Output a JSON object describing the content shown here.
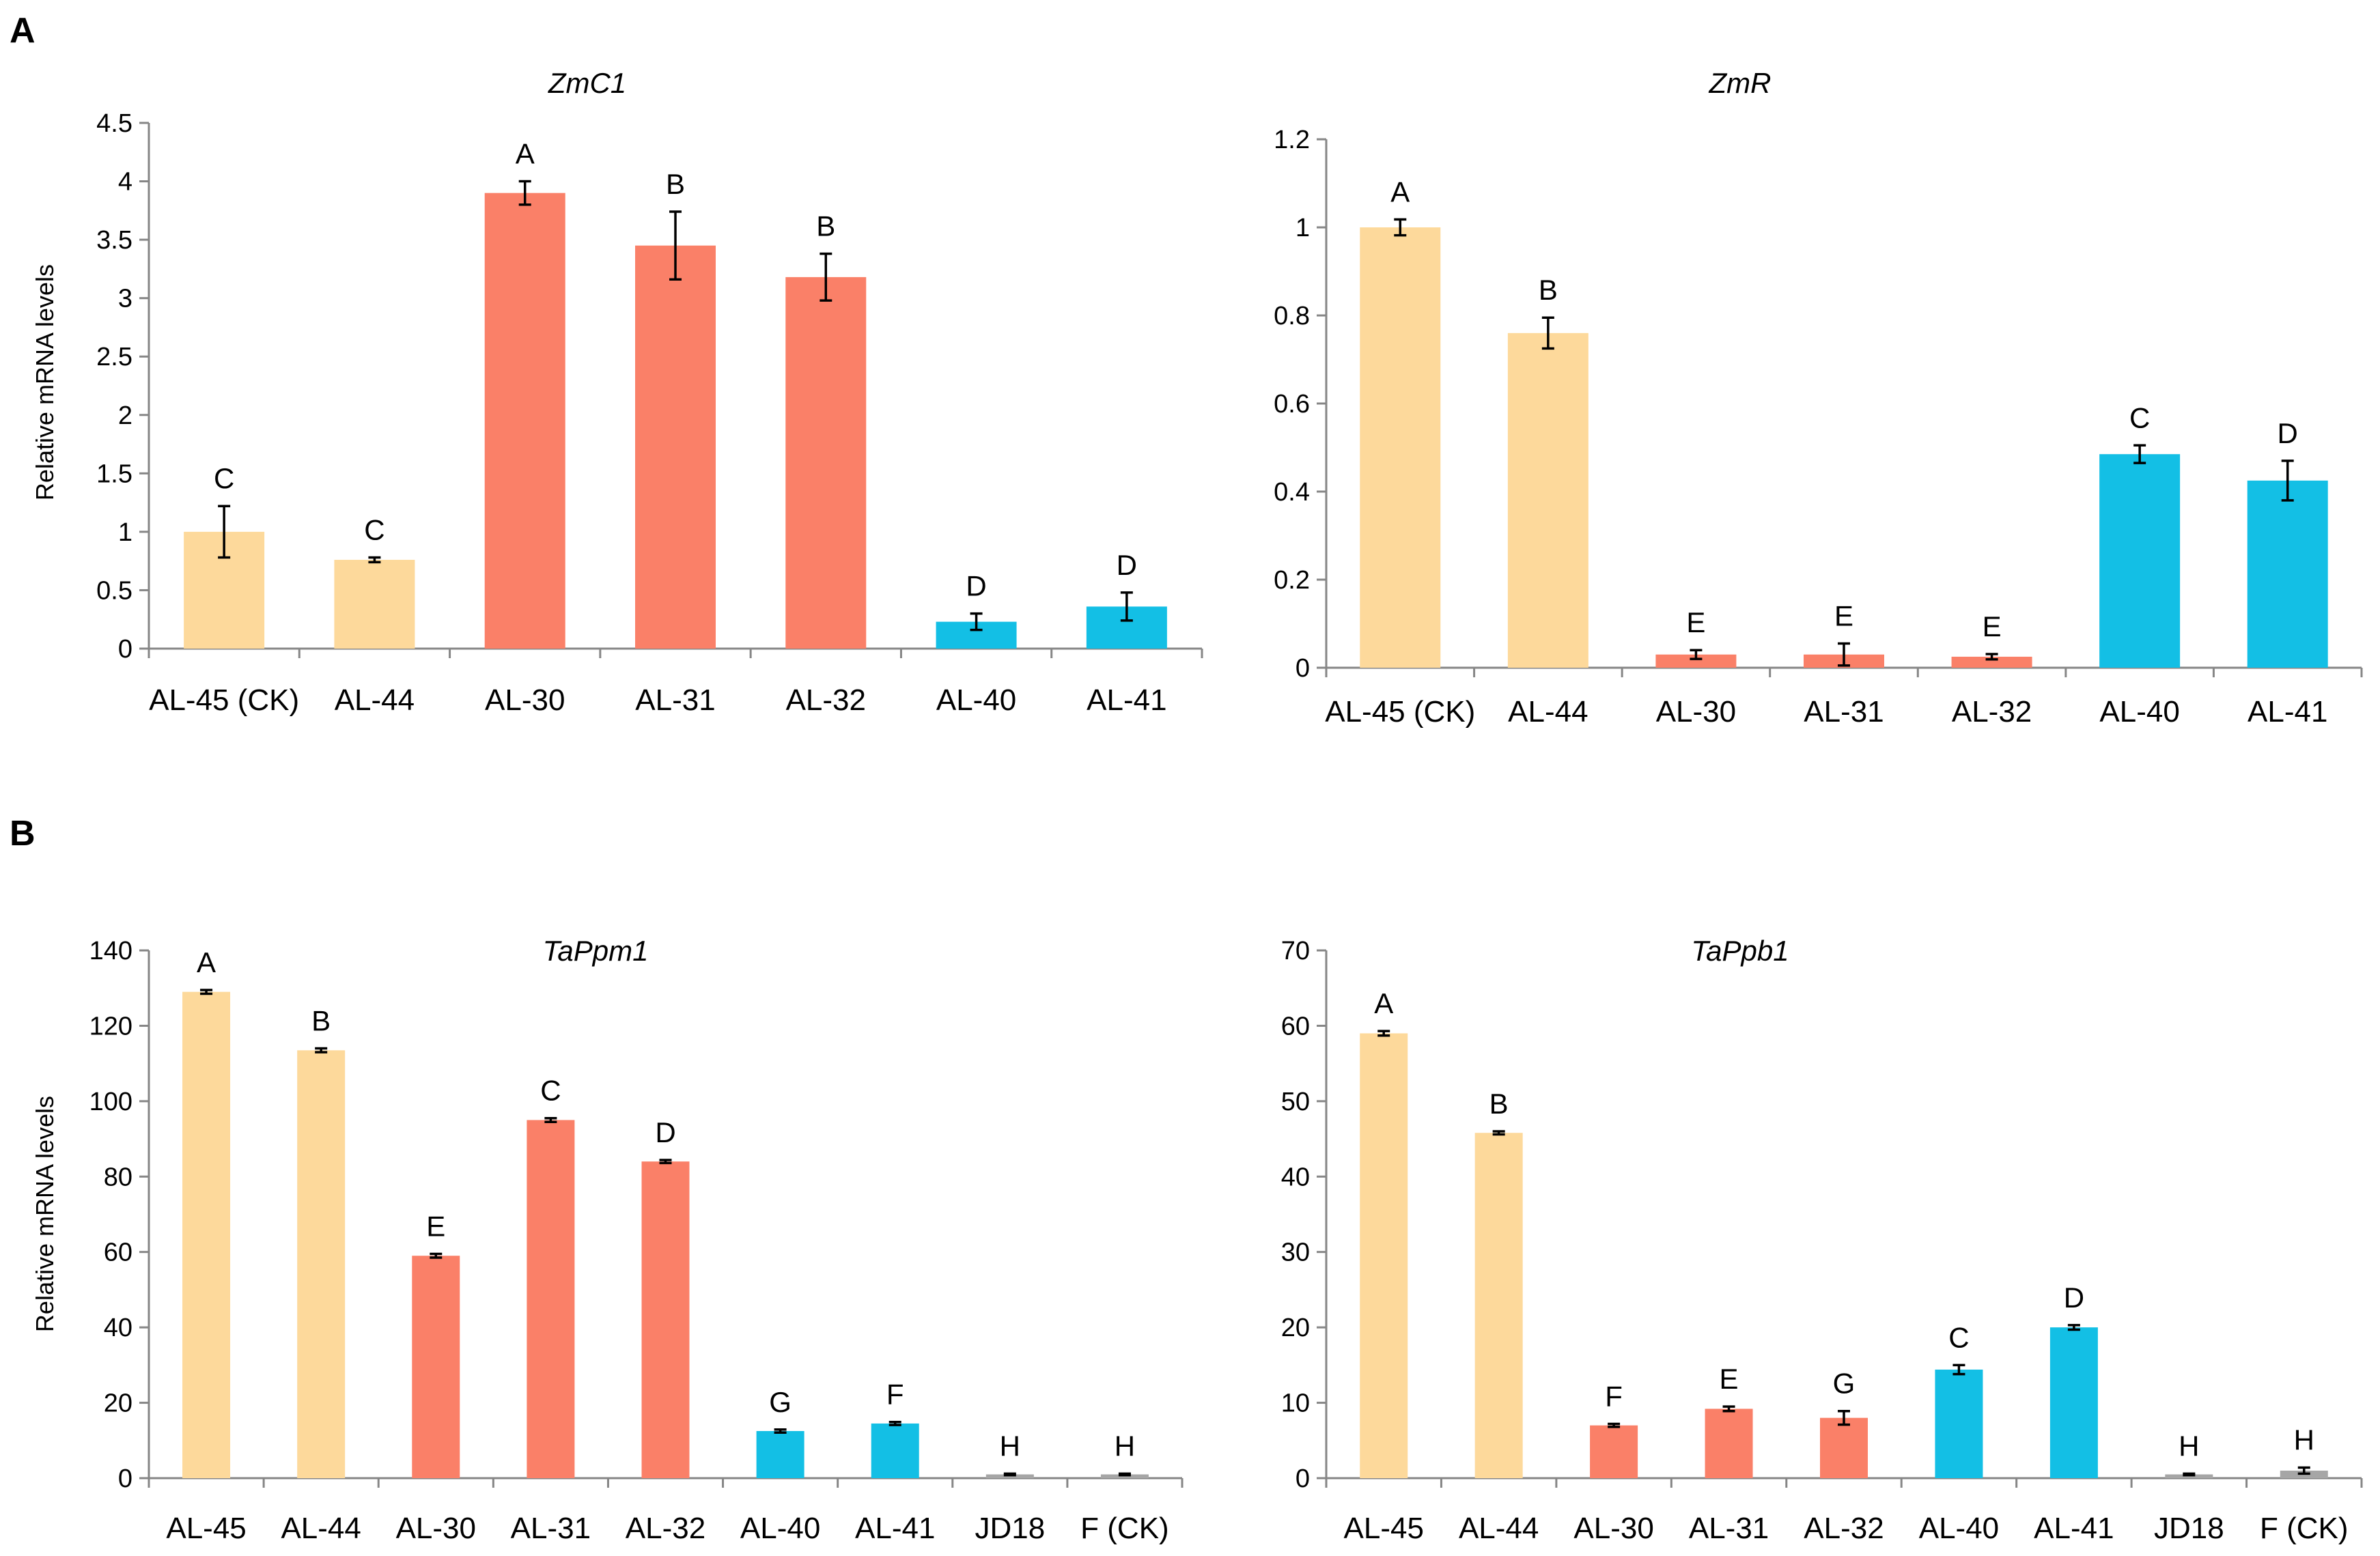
{
  "panels": {
    "A": "A",
    "B": "B"
  },
  "colors": {
    "yellow": "#fdd99b",
    "salmon": "#fa8068",
    "cyan": "#13bfe5",
    "gray": "#a6a6a6"
  },
  "chart_data": [
    {
      "type": "bar",
      "panel": "A",
      "title": "ZmC1",
      "ylabel": "Relative mRNA levels",
      "ylim": [
        0,
        4.5
      ],
      "yticks": [
        "0",
        "0.5",
        "1",
        "1.5",
        "2",
        "2.5",
        "3",
        "3.5",
        "4",
        "4.5"
      ],
      "categories": [
        "AL-45 (CK)",
        "AL-44",
        "AL-30",
        "AL-31",
        "AL-32",
        "AL-40",
        "AL-41"
      ],
      "values": [
        1.0,
        0.76,
        3.9,
        3.45,
        3.18,
        0.23,
        0.36
      ],
      "errors": [
        0.22,
        0.02,
        0.1,
        0.29,
        0.2,
        0.07,
        0.12
      ],
      "labels": [
        "C",
        "C",
        "A",
        "B",
        "B",
        "D",
        "D"
      ],
      "colors": [
        "yellow",
        "yellow",
        "salmon",
        "salmon",
        "salmon",
        "cyan",
        "cyan"
      ]
    },
    {
      "type": "bar",
      "panel": "A",
      "title": "ZmR",
      "ylabel": "",
      "ylim": [
        0,
        1.2
      ],
      "yticks": [
        "0",
        "0.2",
        "0.4",
        "0.6",
        "0.8",
        "1",
        "1.2"
      ],
      "categories": [
        "AL-45 (CK)",
        "AL-44",
        "AL-30",
        "AL-31",
        "AL-32",
        "AL-40",
        "AL-41"
      ],
      "values": [
        1.0,
        0.76,
        0.03,
        0.03,
        0.025,
        0.485,
        0.425
      ],
      "errors": [
        0.018,
        0.035,
        0.01,
        0.025,
        0.006,
        0.02,
        0.045
      ],
      "labels": [
        "A",
        "B",
        "E",
        "E",
        "E",
        "C",
        "D"
      ],
      "colors": [
        "yellow",
        "yellow",
        "salmon",
        "salmon",
        "salmon",
        "cyan",
        "cyan"
      ]
    },
    {
      "type": "bar",
      "panel": "B",
      "title": "TaPpm1",
      "ylabel": "Relative mRNA levels",
      "ylim": [
        0,
        140
      ],
      "yticks": [
        "0",
        "20",
        "40",
        "60",
        "80",
        "100",
        "120",
        "140"
      ],
      "categories": [
        "AL-45",
        "AL-44",
        "AL-30",
        "AL-31",
        "AL-32",
        "AL-40",
        "AL-41",
        "JD18",
        "F (CK)"
      ],
      "values": [
        129,
        113.5,
        59,
        95,
        84,
        12.5,
        14.5,
        1,
        1
      ],
      "errors": [
        0.5,
        0.5,
        0.5,
        0.5,
        0.4,
        0.4,
        0.4,
        0.2,
        0.2
      ],
      "labels": [
        "A",
        "B",
        "E",
        "C",
        "D",
        "G",
        "F",
        "H",
        "H"
      ],
      "colors": [
        "yellow",
        "yellow",
        "salmon",
        "salmon",
        "salmon",
        "cyan",
        "cyan",
        "gray",
        "gray"
      ]
    },
    {
      "type": "bar",
      "panel": "B",
      "title": "TaPpb1",
      "ylabel": "",
      "ylim": [
        0,
        70
      ],
      "yticks": [
        "0",
        "10",
        "20",
        "30",
        "40",
        "50",
        "60",
        "70"
      ],
      "categories": [
        "AL-45",
        "AL-44",
        "AL-30",
        "AL-31",
        "AL-32",
        "AL-40",
        "AL-41",
        "JD18",
        "F (CK)"
      ],
      "values": [
        59,
        45.8,
        7,
        9.2,
        8,
        14.4,
        20,
        0.5,
        1
      ],
      "errors": [
        0.3,
        0.2,
        0.2,
        0.3,
        0.9,
        0.6,
        0.3,
        0.1,
        0.4
      ],
      "labels": [
        "A",
        "B",
        "F",
        "E",
        "G",
        "C",
        "D",
        "H",
        "H"
      ],
      "colors": [
        "yellow",
        "yellow",
        "salmon",
        "salmon",
        "salmon",
        "cyan",
        "cyan",
        "gray",
        "gray"
      ]
    }
  ]
}
